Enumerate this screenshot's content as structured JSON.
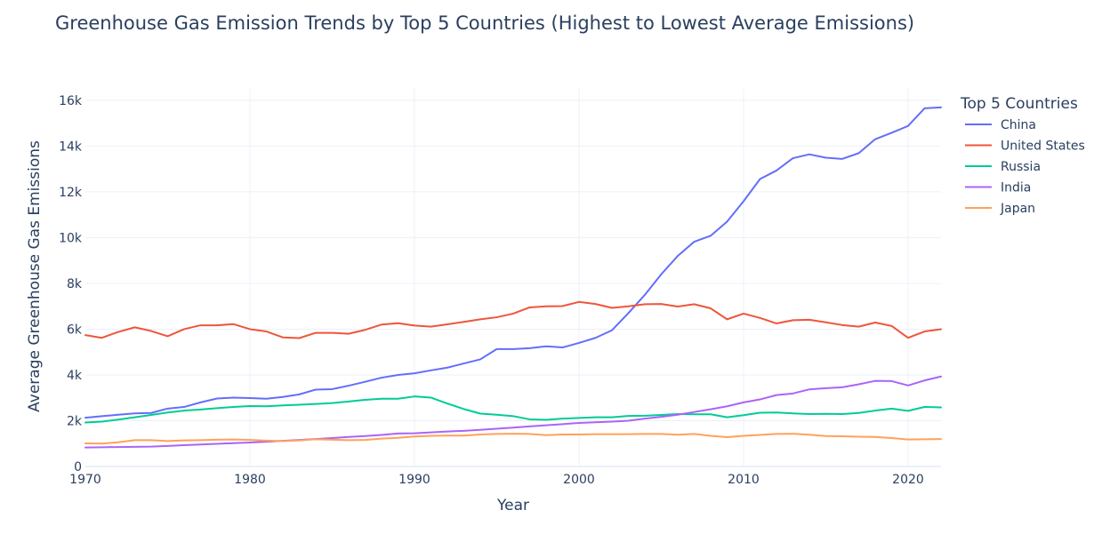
{
  "chart_data": {
    "type": "line",
    "title": "Greenhouse Gas Emission Trends by Top 5 Countries (Highest to Lowest Average Emissions)",
    "xlabel": "Year",
    "ylabel": "Average Greenhouse Gas Emissions",
    "xlim": [
      1970,
      2022
    ],
    "ylim": [
      0,
      16500
    ],
    "x_ticks": [
      1970,
      1980,
      1990,
      2000,
      2010,
      2020
    ],
    "x_tick_labels": [
      "1970",
      "1980",
      "1990",
      "2000",
      "2010",
      "2020"
    ],
    "y_ticks": [
      0,
      2000,
      4000,
      6000,
      8000,
      10000,
      12000,
      14000,
      16000
    ],
    "y_tick_labels": [
      "0",
      "2k",
      "4k",
      "6k",
      "8k",
      "10k",
      "12k",
      "14k",
      "16k"
    ],
    "grid": true,
    "legend": {
      "title": "Top 5 Countries",
      "placement": "right"
    },
    "x": [
      1970,
      1971,
      1972,
      1973,
      1974,
      1975,
      1976,
      1977,
      1978,
      1979,
      1980,
      1981,
      1982,
      1983,
      1984,
      1985,
      1986,
      1987,
      1988,
      1989,
      1990,
      1991,
      1992,
      1993,
      1994,
      1995,
      1996,
      1997,
      1998,
      1999,
      2000,
      2001,
      2002,
      2003,
      2004,
      2005,
      2006,
      2007,
      2008,
      2009,
      2010,
      2011,
      2012,
      2013,
      2014,
      2015,
      2016,
      2017,
      2018,
      2019,
      2020,
      2021,
      2022
    ],
    "series": [
      {
        "name": "China",
        "color": "#636efa",
        "values": [
          2130,
          2200,
          2260,
          2320,
          2340,
          2530,
          2600,
          2800,
          2970,
          3010,
          2990,
          2960,
          3040,
          3150,
          3360,
          3380,
          3530,
          3700,
          3880,
          4000,
          4070,
          4200,
          4320,
          4500,
          4680,
          5130,
          5130,
          5170,
          5250,
          5200,
          5400,
          5620,
          5950,
          6700,
          7500,
          8400,
          9200,
          9820,
          10080,
          10700,
          11590,
          12560,
          12930,
          13470,
          13640,
          13490,
          13440,
          13690,
          14300,
          14580,
          14880,
          15650,
          15690
        ]
      },
      {
        "name": "United States",
        "color": "#ef553b",
        "values": [
          5740,
          5620,
          5880,
          6080,
          5920,
          5690,
          6000,
          6170,
          6170,
          6220,
          6000,
          5900,
          5640,
          5610,
          5840,
          5840,
          5800,
          5970,
          6200,
          6260,
          6160,
          6110,
          6210,
          6320,
          6430,
          6520,
          6680,
          6950,
          7000,
          7010,
          7190,
          7100,
          6930,
          7000,
          7090,
          7100,
          6990,
          7090,
          6910,
          6430,
          6680,
          6490,
          6250,
          6390,
          6410,
          6300,
          6180,
          6110,
          6290,
          6140,
          5620,
          5900,
          6000
        ]
      },
      {
        "name": "Russia",
        "color": "#00cc96",
        "values": [
          1920,
          1960,
          2050,
          2150,
          2250,
          2360,
          2440,
          2490,
          2550,
          2600,
          2640,
          2630,
          2670,
          2700,
          2730,
          2770,
          2840,
          2910,
          2960,
          2960,
          3060,
          3010,
          2750,
          2510,
          2310,
          2260,
          2200,
          2060,
          2040,
          2090,
          2120,
          2150,
          2150,
          2210,
          2220,
          2250,
          2290,
          2280,
          2280,
          2150,
          2240,
          2350,
          2360,
          2320,
          2290,
          2300,
          2290,
          2340,
          2440,
          2530,
          2430,
          2600,
          2580
        ]
      },
      {
        "name": "India",
        "color": "#ab63fa",
        "values": [
          830,
          840,
          850,
          860,
          870,
          900,
          930,
          960,
          990,
          1020,
          1050,
          1080,
          1120,
          1160,
          1200,
          1240,
          1290,
          1330,
          1380,
          1440,
          1450,
          1490,
          1530,
          1560,
          1600,
          1650,
          1700,
          1750,
          1800,
          1850,
          1900,
          1930,
          1960,
          2000,
          2090,
          2170,
          2260,
          2380,
          2500,
          2630,
          2800,
          2930,
          3120,
          3190,
          3370,
          3420,
          3460,
          3590,
          3740,
          3730,
          3540,
          3760,
          3930
        ]
      },
      {
        "name": "Japan",
        "color": "#ffa15a",
        "values": [
          1010,
          1000,
          1060,
          1150,
          1150,
          1110,
          1140,
          1150,
          1170,
          1180,
          1160,
          1130,
          1110,
          1140,
          1190,
          1170,
          1150,
          1160,
          1220,
          1250,
          1310,
          1340,
          1350,
          1350,
          1400,
          1420,
          1430,
          1420,
          1370,
          1400,
          1400,
          1410,
          1410,
          1410,
          1420,
          1420,
          1390,
          1420,
          1340,
          1280,
          1340,
          1380,
          1420,
          1430,
          1390,
          1330,
          1320,
          1300,
          1290,
          1240,
          1180,
          1190,
          1200
        ]
      }
    ]
  }
}
